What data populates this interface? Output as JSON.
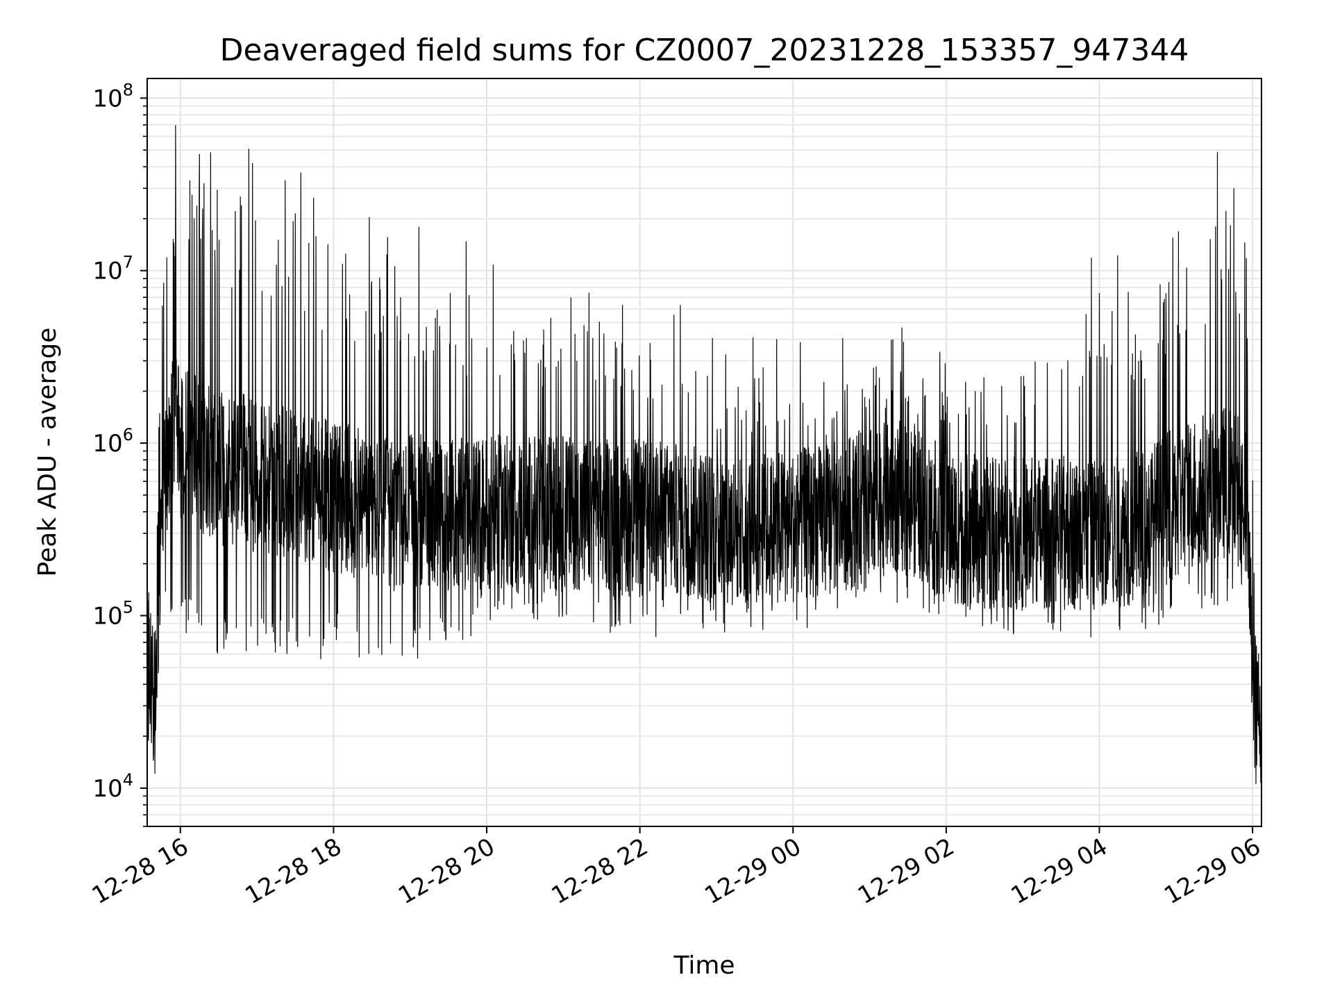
{
  "chart_data": {
    "type": "line",
    "title": "Deaveraged field sums for CZ0007_20231228_153357_947344",
    "xlabel": "Time",
    "ylabel": "Peak ADU - average",
    "yscale": "log",
    "grid": true,
    "line_color": "#000000",
    "x_range": [
      "2023-12-28 15:34",
      "2023-12-29 06:07"
    ],
    "ylim": [
      6000,
      130000000
    ],
    "x_ticks": [
      {
        "t": "2023-12-28 16:00",
        "label": "12-28 16"
      },
      {
        "t": "2023-12-28 18:00",
        "label": "12-28 18"
      },
      {
        "t": "2023-12-28 20:00",
        "label": "12-28 20"
      },
      {
        "t": "2023-12-28 22:00",
        "label": "12-28 22"
      },
      {
        "t": "2023-12-29 00:00",
        "label": "12-29 00"
      },
      {
        "t": "2023-12-29 02:00",
        "label": "12-29 02"
      },
      {
        "t": "2023-12-29 04:00",
        "label": "12-29 04"
      },
      {
        "t": "2023-12-29 06:00",
        "label": "12-29 06"
      }
    ],
    "y_ticks": [
      {
        "value": 10000,
        "base": "10",
        "exp": "4"
      },
      {
        "value": 100000,
        "base": "10",
        "exp": "5"
      },
      {
        "value": 1000000,
        "base": "10",
        "exp": "6"
      },
      {
        "value": 10000000,
        "base": "10",
        "exp": "7"
      },
      {
        "value": 100000000,
        "base": "10",
        "exp": "8"
      }
    ],
    "series": [
      {
        "x": [
          "2023-12-28 15:34",
          "2023-12-28 15:37",
          "2023-12-28 15:40",
          "2023-12-28 15:43",
          "2023-12-28 15:46",
          "2023-12-28 15:50",
          "2023-12-28 15:55",
          "2023-12-28 16:00",
          "2023-12-28 16:10",
          "2023-12-28 16:20",
          "2023-12-28 16:30",
          "2023-12-28 16:45",
          "2023-12-28 17:00",
          "2023-12-28 17:15",
          "2023-12-28 17:30",
          "2023-12-28 17:45",
          "2023-12-28 18:00",
          "2023-12-28 18:15",
          "2023-12-28 18:30",
          "2023-12-28 18:45",
          "2023-12-28 19:00",
          "2023-12-28 19:15",
          "2023-12-28 19:30",
          "2023-12-28 19:45",
          "2023-12-28 20:00",
          "2023-12-28 20:30",
          "2023-12-28 21:00",
          "2023-12-28 21:30",
          "2023-12-28 22:00",
          "2023-12-28 22:30",
          "2023-12-28 23:00",
          "2023-12-28 23:30",
          "2023-12-29 00:00",
          "2023-12-29 00:30",
          "2023-12-29 01:00",
          "2023-12-29 01:30",
          "2023-12-29 02:00",
          "2023-12-29 02:30",
          "2023-12-29 03:00",
          "2023-12-29 03:30",
          "2023-12-29 04:00",
          "2023-12-29 04:30",
          "2023-12-29 05:00",
          "2023-12-29 05:20",
          "2023-12-29 05:40",
          "2023-12-29 05:55",
          "2023-12-29 06:00",
          "2023-12-29 06:03",
          "2023-12-29 06:07"
        ],
        "y": [
          60000,
          40000,
          30000,
          150000,
          600000,
          900000,
          1200000,
          1000000,
          900000,
          800000,
          700000,
          700000,
          650000,
          600000,
          600000,
          550000,
          500000,
          450000,
          400000,
          380000,
          400000,
          400000,
          380000,
          380000,
          400000,
          400000,
          400000,
          380000,
          380000,
          360000,
          330000,
          320000,
          330000,
          360000,
          450000,
          500000,
          330000,
          300000,
          300000,
          300000,
          300000,
          320000,
          450000,
          550000,
          600000,
          500000,
          50000,
          25000,
          30000
        ],
        "spread_low": [
          0.4,
          0.4,
          0.5,
          0.3,
          0.2,
          0.15,
          0.1,
          0.1,
          0.1,
          0.1,
          0.1,
          0.1,
          0.12,
          0.12,
          0.12,
          0.12,
          0.15,
          0.15,
          0.15,
          0.15,
          0.15,
          0.2,
          0.2,
          0.2,
          0.25,
          0.25,
          0.25,
          0.25,
          0.25,
          0.25,
          0.3,
          0.3,
          0.3,
          0.3,
          0.3,
          0.3,
          0.3,
          0.3,
          0.3,
          0.3,
          0.3,
          0.3,
          0.25,
          0.2,
          0.2,
          0.25,
          0.4,
          0.5,
          0.5
        ],
        "spread_high": [
          8,
          6,
          6,
          10,
          25,
          40,
          50,
          60,
          60,
          60,
          60,
          60,
          60,
          55,
          55,
          50,
          45,
          40,
          35,
          35,
          35,
          30,
          30,
          28,
          25,
          20,
          18,
          18,
          15,
          12,
          10,
          10,
          8,
          8,
          8,
          8,
          8,
          10,
          15,
          25,
          30,
          30,
          35,
          50,
          60,
          50,
          15,
          10,
          8
        ]
      }
    ]
  }
}
